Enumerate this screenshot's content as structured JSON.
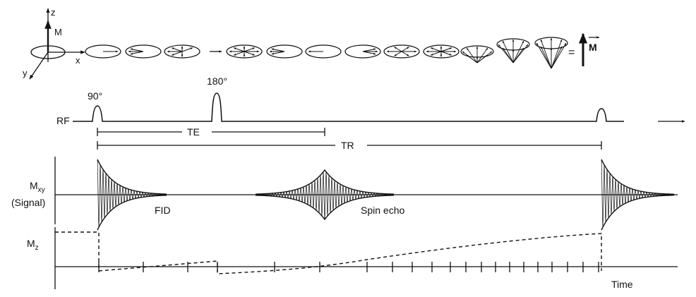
{
  "axes": {
    "z": "z",
    "y": "y",
    "x": "x",
    "m": "M"
  },
  "rf": {
    "label": "RF",
    "pulse_90": "90°",
    "pulse_180": "180°"
  },
  "intervals": {
    "te": "TE",
    "tr": "TR"
  },
  "mxy": {
    "label_main": "M",
    "label_sub": "xy",
    "label_signal": "(Signal)",
    "fid": "FID",
    "echo": "Spin echo"
  },
  "mz": {
    "label_main": "M",
    "label_sub": "z",
    "time": "Time"
  },
  "equals": "=",
  "net_magnetization": "M"
}
